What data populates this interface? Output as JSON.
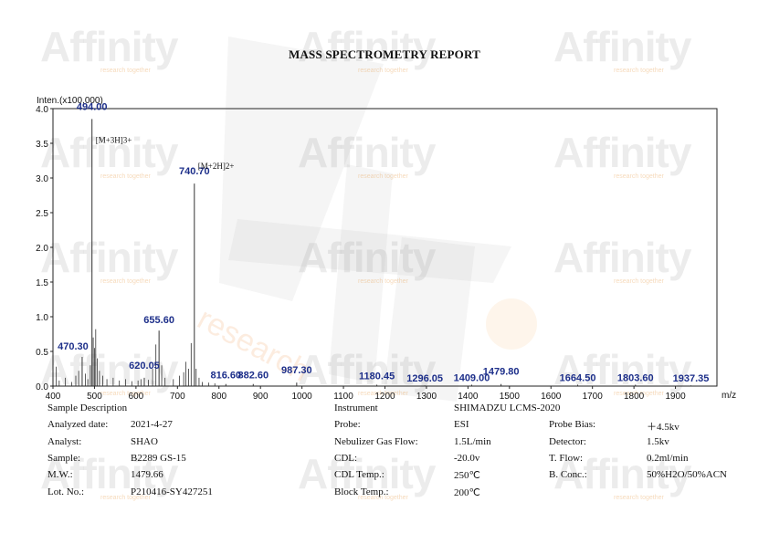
{
  "report": {
    "title": "MASS SPECTROMETRY REPORT"
  },
  "watermark": {
    "brand": "Affinity",
    "tagline": "research together",
    "big_text": "research"
  },
  "chart_data": {
    "type": "bar",
    "title": "",
    "xlabel": "m/z",
    "ylabel": "Inten.(x100,000)",
    "xlim": [
      400,
      2000
    ],
    "ylim": [
      0,
      4.0
    ],
    "x_ticks": [
      400,
      500,
      600,
      700,
      800,
      900,
      1000,
      1100,
      1200,
      1300,
      1400,
      1500,
      1600,
      1700,
      1800,
      1900
    ],
    "x_tick_labels": [
      "400",
      "500",
      "600",
      "700",
      "800",
      "900",
      "1000",
      "1100",
      "1200",
      "1300",
      "1400",
      "1500",
      "1600",
      "1700",
      "1800",
      "1900"
    ],
    "y_ticks": [
      0.0,
      0.5,
      1.0,
      1.5,
      2.0,
      2.5,
      3.0,
      3.5,
      4.0
    ],
    "y_tick_labels": [
      "0.0",
      "0.5",
      "1.0",
      "1.5",
      "2.0",
      "2.5",
      "3.0",
      "3.5",
      "4.0"
    ],
    "grid": false,
    "peaks_labeled": [
      {
        "mz": 494.0,
        "label": "494.00",
        "intensity": 3.85
      },
      {
        "mz": 740.7,
        "label": "740.70",
        "intensity": 2.92
      },
      {
        "mz": 470.3,
        "label": "470.30",
        "intensity": 0.42
      },
      {
        "mz": 655.6,
        "label": "655.60",
        "intensity": 0.8
      },
      {
        "mz": 620.05,
        "label": "620.05",
        "intensity": 0.12
      },
      {
        "mz": 816.6,
        "label": "816.60",
        "intensity": 0.03
      },
      {
        "mz": 882.6,
        "label": "882.60",
        "intensity": 0.03
      },
      {
        "mz": 987.3,
        "label": "987.30",
        "intensity": 0.05
      },
      {
        "mz": 1180.45,
        "label": "1180.45",
        "intensity": 0.02
      },
      {
        "mz": 1296.05,
        "label": "1296.05",
        "intensity": 0.01
      },
      {
        "mz": 1409.0,
        "label": "1409.00",
        "intensity": 0.02
      },
      {
        "mz": 1479.8,
        "label": "1479.80",
        "intensity": 0.03
      },
      {
        "mz": 1664.5,
        "label": "1664.50",
        "intensity": 0.02
      },
      {
        "mz": 1803.6,
        "label": "1803.60",
        "intensity": 0.02
      },
      {
        "mz": 1937.35,
        "label": "1937.35",
        "intensity": 0.01
      }
    ],
    "peaks_minor": [
      {
        "mz": 408,
        "intensity": 0.28
      },
      {
        "mz": 415,
        "intensity": 0.08
      },
      {
        "mz": 430,
        "intensity": 0.12
      },
      {
        "mz": 445,
        "intensity": 0.06
      },
      {
        "mz": 455,
        "intensity": 0.15
      },
      {
        "mz": 462,
        "intensity": 0.22
      },
      {
        "mz": 478,
        "intensity": 0.18
      },
      {
        "mz": 484,
        "intensity": 0.1
      },
      {
        "mz": 490,
        "intensity": 0.3
      },
      {
        "mz": 497,
        "intensity": 0.7
      },
      {
        "mz": 500,
        "intensity": 0.55
      },
      {
        "mz": 503,
        "intensity": 0.82
      },
      {
        "mz": 507,
        "intensity": 0.4
      },
      {
        "mz": 512,
        "intensity": 0.22
      },
      {
        "mz": 520,
        "intensity": 0.15
      },
      {
        "mz": 530,
        "intensity": 0.1
      },
      {
        "mz": 545,
        "intensity": 0.12
      },
      {
        "mz": 560,
        "intensity": 0.08
      },
      {
        "mz": 575,
        "intensity": 0.1
      },
      {
        "mz": 590,
        "intensity": 0.07
      },
      {
        "mz": 605,
        "intensity": 0.08
      },
      {
        "mz": 612,
        "intensity": 0.1
      },
      {
        "mz": 630,
        "intensity": 0.09
      },
      {
        "mz": 640,
        "intensity": 0.25
      },
      {
        "mz": 648,
        "intensity": 0.6
      },
      {
        "mz": 662,
        "intensity": 0.3
      },
      {
        "mz": 670,
        "intensity": 0.12
      },
      {
        "mz": 690,
        "intensity": 0.1
      },
      {
        "mz": 705,
        "intensity": 0.15
      },
      {
        "mz": 715,
        "intensity": 0.2
      },
      {
        "mz": 720,
        "intensity": 0.35
      },
      {
        "mz": 727,
        "intensity": 0.25
      },
      {
        "mz": 733,
        "intensity": 0.62
      },
      {
        "mz": 745,
        "intensity": 0.25
      },
      {
        "mz": 752,
        "intensity": 0.12
      },
      {
        "mz": 760,
        "intensity": 0.06
      },
      {
        "mz": 775,
        "intensity": 0.05
      },
      {
        "mz": 790,
        "intensity": 0.04
      }
    ],
    "annotations": [
      {
        "text": "[M+3H]3+",
        "mz": 494.0
      },
      {
        "text": "[M+2H]2+",
        "mz": 740.7
      }
    ]
  },
  "info_table": {
    "left": {
      "header": "Sample Description",
      "rows": [
        {
          "label": "Analyzed date:",
          "value": "2021-4-27"
        },
        {
          "label": "Analyst:",
          "value": "SHAO"
        },
        {
          "label": "Sample:",
          "value": "B2289 GS-15"
        },
        {
          "label": "M.W.:",
          "value": "1479.66"
        },
        {
          "label": "Lot. No.:",
          "value": "P210416-SY427251"
        }
      ]
    },
    "right": {
      "header_label": "Instrument",
      "header_value": "SHIMADZU LCMS-2020",
      "rows": [
        {
          "label": "Probe:",
          "value": "ESI",
          "label2": "Probe Bias:",
          "value2": "＋4.5kv"
        },
        {
          "label": "Nebulizer Gas Flow:",
          "value": "1.5L/min",
          "label2": "Detector:",
          "value2": "1.5kv"
        },
        {
          "label": "CDL:",
          "value": "-20.0v",
          "label2": "T. Flow:",
          "value2": "0.2ml/min"
        },
        {
          "label": "CDL Temp.:",
          "value": "250℃",
          "label2": "B. Conc.:",
          "value2": "50%H2O/50%ACN"
        },
        {
          "label": "Block Temp.:",
          "value": "200℃",
          "label2": "",
          "value2": ""
        }
      ]
    }
  }
}
